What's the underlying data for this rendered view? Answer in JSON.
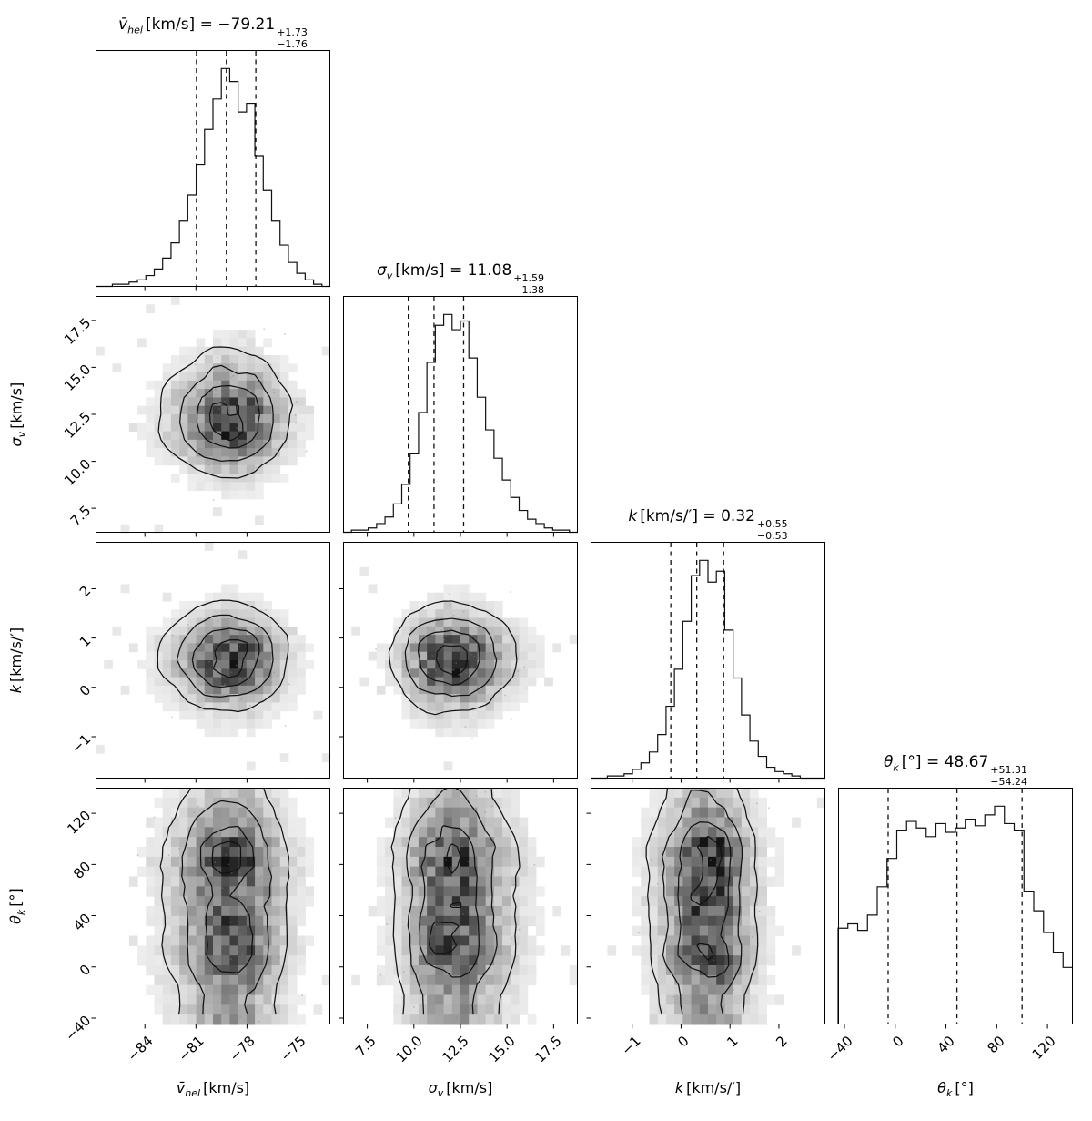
{
  "chart_data": {
    "type": "corner_plot",
    "equals": " = ",
    "contour_levels_fraction_of_peak": [
      0.12,
      0.32,
      0.6,
      0.85
    ],
    "colors": {
      "line": "#000000",
      "dashed_quantile_lines": "#000000",
      "heatmap_max": "#1a1a1a",
      "scatter_points": "#999999",
      "background": "#ffffff"
    },
    "parameters": [
      {
        "id": "vhel",
        "symbol": "v̄",
        "subscript": "hel",
        "unit": "[km/s]",
        "axis_label_plain": "v̄_hel [km/s]",
        "title_plain": "v̄_hel [km/s] = −79.21 +1.73 −1.76",
        "value": "−79.21",
        "err_plus": "+1.73",
        "err_minus": "−1.76",
        "range": [
          -86.9,
          -73.1
        ],
        "ticks": [
          -84,
          -81,
          -78,
          -75
        ],
        "tick_labels": [
          "−84",
          "−81",
          "−78",
          "−75"
        ],
        "quantiles": [
          -80.97,
          -79.21,
          -77.48
        ],
        "hist": [
          0.0,
          0.0,
          0.01,
          0.01,
          0.02,
          0.03,
          0.05,
          0.08,
          0.13,
          0.2,
          0.3,
          0.42,
          0.56,
          0.72,
          0.86,
          1.0,
          0.94,
          0.8,
          0.84,
          0.6,
          0.44,
          0.3,
          0.19,
          0.11,
          0.06,
          0.03,
          0.01,
          0.0
        ]
      },
      {
        "id": "sigmav",
        "symbol": "σ",
        "subscript": "v",
        "unit": "[km/s]",
        "axis_label_plain": "σ_v [km/s]",
        "title_plain": "σ_v [km/s] = 11.08 +1.59 −1.38",
        "value": "11.08",
        "err_plus": "+1.59",
        "err_minus": "−1.38",
        "range": [
          6.2,
          18.8
        ],
        "ticks": [
          7.5,
          10.0,
          12.5,
          15.0,
          17.5
        ],
        "tick_labels": [
          "7.5",
          "10.0",
          "12.5",
          "15.0",
          "17.5"
        ],
        "quantiles": [
          9.7,
          11.08,
          12.67
        ],
        "hist": [
          0.0,
          0.01,
          0.01,
          0.02,
          0.04,
          0.07,
          0.13,
          0.22,
          0.36,
          0.55,
          0.78,
          0.95,
          1.0,
          0.93,
          0.97,
          0.8,
          0.62,
          0.47,
          0.34,
          0.24,
          0.16,
          0.1,
          0.06,
          0.04,
          0.02,
          0.01,
          0.01,
          0.0
        ]
      },
      {
        "id": "k",
        "symbol": "k",
        "subscript": "",
        "unit": "[km/s/′]",
        "axis_label_plain": "k [km/s/′]",
        "title_plain": "k [km/s/′] = 0.32 +0.55 −0.53",
        "value": "0.32",
        "err_plus": "+0.55",
        "err_minus": "−0.53",
        "range": [
          -1.85,
          2.95
        ],
        "ticks": [
          -1,
          0,
          1,
          2
        ],
        "tick_labels": [
          "−1",
          "0",
          "1",
          "2"
        ],
        "quantiles": [
          -0.21,
          0.32,
          0.87
        ],
        "hist": [
          0.0,
          0.0,
          0.01,
          0.01,
          0.02,
          0.04,
          0.07,
          0.12,
          0.2,
          0.33,
          0.5,
          0.72,
          0.93,
          1.0,
          0.9,
          0.95,
          0.68,
          0.46,
          0.29,
          0.17,
          0.1,
          0.05,
          0.03,
          0.02,
          0.01,
          0.0,
          0.0,
          0.0
        ]
      },
      {
        "id": "thetak",
        "symbol": "θ",
        "subscript": "k",
        "unit": "[°]",
        "axis_label_plain": "θ_k [°]",
        "title_plain": "θ_k [°] = 48.67 +51.31 −54.24",
        "value": "48.67",
        "err_plus": "+51.31",
        "err_minus": "−54.24",
        "range": [
          -45,
          140
        ],
        "ticks": [
          -40,
          0,
          40,
          80,
          120
        ],
        "tick_labels": [
          "−40",
          "0",
          "40",
          "80",
          "120"
        ],
        "quantiles": [
          -5.57,
          48.67,
          99.98
        ],
        "hist": [
          0.44,
          0.46,
          0.43,
          0.5,
          0.63,
          0.76,
          0.89,
          0.93,
          0.9,
          0.86,
          0.92,
          0.88,
          0.9,
          0.94,
          0.91,
          0.96,
          1.0,
          0.92,
          0.89,
          0.61,
          0.52,
          0.42,
          0.33,
          0.26
        ]
      }
    ],
    "panels": [
      {
        "type": "hist",
        "param": "vhel",
        "row": 0,
        "col": 0
      },
      {
        "type": "2d",
        "x": "vhel",
        "y": "sigmav",
        "row": 1,
        "col": 0
      },
      {
        "type": "hist",
        "param": "sigmav",
        "row": 1,
        "col": 1
      },
      {
        "type": "2d",
        "x": "vhel",
        "y": "k",
        "row": 2,
        "col": 0
      },
      {
        "type": "2d",
        "x": "sigmav",
        "y": "k",
        "row": 2,
        "col": 1
      },
      {
        "type": "hist",
        "param": "k",
        "row": 2,
        "col": 2
      },
      {
        "type": "2d",
        "x": "vhel",
        "y": "thetak",
        "row": 3,
        "col": 0
      },
      {
        "type": "2d",
        "x": "sigmav",
        "y": "thetak",
        "row": 3,
        "col": 1
      },
      {
        "type": "2d",
        "x": "k",
        "y": "thetak",
        "row": 3,
        "col": 2
      },
      {
        "type": "hist",
        "param": "thetak",
        "row": 3,
        "col": 3
      }
    ]
  }
}
